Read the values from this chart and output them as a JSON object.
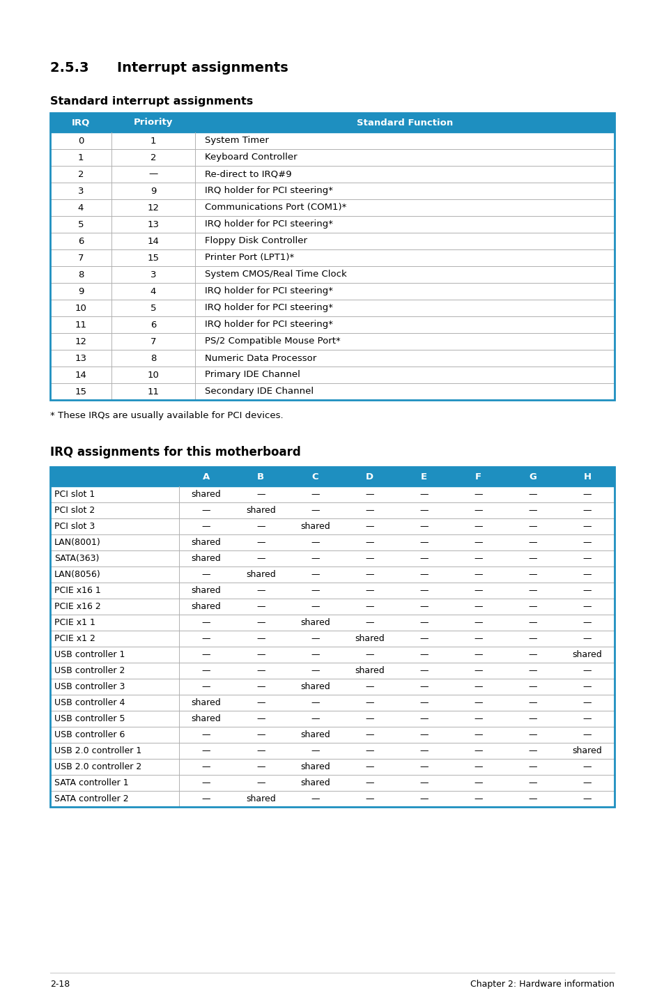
{
  "title_section": "2.5.3      Interrupt assignments",
  "subtitle1": "Standard interrupt assignments",
  "subtitle2": "IRQ assignments for this motherboard",
  "footnote": "* These IRQs are usually available for PCI devices.",
  "footer_left": "2-18",
  "footer_right": "Chapter 2: Hardware information",
  "header_color": "#1e8fc0",
  "header_text_color": "#ffffff",
  "table1_header": [
    "IRQ",
    "Priority",
    "Standard Function"
  ],
  "table1_rows": [
    [
      "0",
      "1",
      "System Timer"
    ],
    [
      "1",
      "2",
      "Keyboard Controller"
    ],
    [
      "2",
      "—",
      "Re-direct to IRQ#9"
    ],
    [
      "3",
      "9",
      "IRQ holder for PCI steering*"
    ],
    [
      "4",
      "12",
      "Communications Port (COM1)*"
    ],
    [
      "5",
      "13",
      "IRQ holder for PCI steering*"
    ],
    [
      "6",
      "14",
      "Floppy Disk Controller"
    ],
    [
      "7",
      "15",
      "Printer Port (LPT1)*"
    ],
    [
      "8",
      "3",
      "System CMOS/Real Time Clock"
    ],
    [
      "9",
      "4",
      "IRQ holder for PCI steering*"
    ],
    [
      "10",
      "5",
      "IRQ holder for PCI steering*"
    ],
    [
      "11",
      "6",
      "IRQ holder for PCI steering*"
    ],
    [
      "12",
      "7",
      "PS/2 Compatible Mouse Port*"
    ],
    [
      "13",
      "8",
      "Numeric Data Processor"
    ],
    [
      "14",
      "10",
      "Primary IDE Channel"
    ],
    [
      "15",
      "11",
      "Secondary IDE Channel"
    ]
  ],
  "table2_header": [
    "",
    "A",
    "B",
    "C",
    "D",
    "E",
    "F",
    "G",
    "H"
  ],
  "table2_rows": [
    [
      "PCI slot 1",
      "shared",
      "—",
      "—",
      "—",
      "—",
      "—",
      "—",
      "—"
    ],
    [
      "PCI slot 2",
      "—",
      "shared",
      "—",
      "—",
      "—",
      "—",
      "—",
      "—"
    ],
    [
      "PCI slot 3",
      "—",
      "—",
      "shared",
      "—",
      "—",
      "—",
      "—",
      "—"
    ],
    [
      "LAN(8001)",
      "shared",
      "—",
      "—",
      "—",
      "—",
      "—",
      "—",
      "—"
    ],
    [
      "SATA(363)",
      "shared",
      "—",
      "—",
      "—",
      "—",
      "—",
      "—",
      "—"
    ],
    [
      "LAN(8056)",
      "—",
      "shared",
      "—",
      "—",
      "—",
      "—",
      "—",
      "—"
    ],
    [
      "PCIE x16 1",
      "shared",
      "—",
      "—",
      "—",
      "—",
      "—",
      "—",
      "—"
    ],
    [
      "PCIE x16 2",
      "shared",
      "—",
      "—",
      "—",
      "—",
      "—",
      "—",
      "—"
    ],
    [
      "PCIE x1 1",
      "—",
      "—",
      "shared",
      "—",
      "—",
      "—",
      "—",
      "—"
    ],
    [
      "PCIE x1 2",
      "—",
      "—",
      "—",
      "shared",
      "—",
      "—",
      "—",
      "—"
    ],
    [
      "USB controller 1",
      "—",
      "—",
      "—",
      "—",
      "—",
      "—",
      "—",
      "shared"
    ],
    [
      "USB controller 2",
      "—",
      "—",
      "—",
      "shared",
      "—",
      "—",
      "—",
      "—"
    ],
    [
      "USB controller 3",
      "—",
      "—",
      "shared",
      "—",
      "—",
      "—",
      "—",
      "—"
    ],
    [
      "USB controller 4",
      "shared",
      "—",
      "—",
      "—",
      "—",
      "—",
      "—",
      "—"
    ],
    [
      "USB controller 5",
      "shared",
      "—",
      "—",
      "—",
      "—",
      "—",
      "—",
      "—"
    ],
    [
      "USB controller 6",
      "—",
      "—",
      "shared",
      "—",
      "—",
      "—",
      "—",
      "—"
    ],
    [
      "USB 2.0 controller 1",
      "—",
      "—",
      "—",
      "—",
      "—",
      "—",
      "—",
      "shared"
    ],
    [
      "USB 2.0 controller 2",
      "—",
      "—",
      "shared",
      "—",
      "—",
      "—",
      "—",
      "—"
    ],
    [
      "SATA controller 1",
      "—",
      "—",
      "shared",
      "—",
      "—",
      "—",
      "—",
      "—"
    ],
    [
      "SATA controller 2",
      "—",
      "shared",
      "—",
      "—",
      "—",
      "—",
      "—",
      "—"
    ]
  ],
  "bg_color": "#ffffff",
  "border_color": "#1e8fc0",
  "row_line_color": "#b0b0b0",
  "text_color": "#000000"
}
